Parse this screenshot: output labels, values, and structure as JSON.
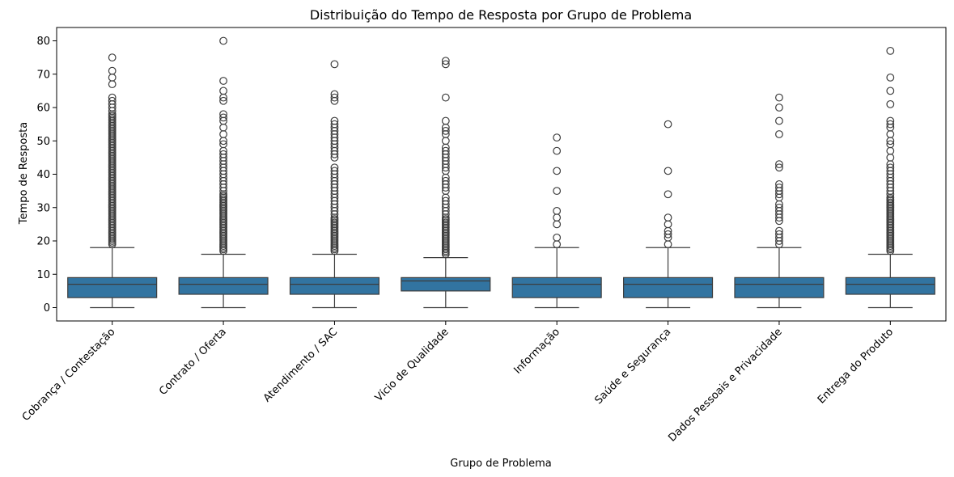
{
  "chart_data": {
    "type": "box",
    "title": "Distribuição do Tempo de Resposta por Grupo de Problema",
    "xlabel": "Grupo de Problema",
    "ylabel": "Tempo de Resposta",
    "ylim": [
      -4,
      84
    ],
    "yticks": [
      0,
      10,
      20,
      30,
      40,
      50,
      60,
      70,
      80
    ],
    "box_color": "#3274a1",
    "line_color": "#3d3d3d",
    "categories": [
      "Cobrança / Contestação",
      "Contrato / Oferta",
      "Atendimento / SAC",
      "Vício de Qualidade",
      "Informação",
      "Saúde e Segurança",
      "Dados Pessoais e Privacidade",
      "Entrega do Produto"
    ],
    "boxes": [
      {
        "min": 0,
        "q1": 3,
        "median": 7,
        "q3": 9,
        "max": 18,
        "outliers": [
          19,
          19.5,
          20,
          20.5,
          21,
          21.5,
          22,
          22.5,
          23,
          23.5,
          24,
          24.5,
          25,
          25.5,
          26,
          26.5,
          27,
          27.5,
          28,
          28.5,
          29,
          29.5,
          30,
          30.5,
          31,
          31.5,
          32,
          32.5,
          33,
          33.5,
          34,
          34.5,
          35,
          35.5,
          36,
          36.5,
          37,
          37.5,
          38,
          38.5,
          39,
          39.5,
          40,
          40.5,
          41,
          41.5,
          42,
          42.5,
          43,
          43.5,
          44,
          44.5,
          45,
          45.5,
          46,
          46.5,
          47,
          47.5,
          48,
          48.5,
          49,
          49.5,
          50,
          50.5,
          51,
          51.5,
          52,
          52.5,
          53,
          53.5,
          54,
          54.5,
          55,
          55.5,
          56,
          56.5,
          57,
          57.5,
          58,
          59,
          60,
          61,
          62,
          63,
          67,
          69,
          71,
          75
        ]
      },
      {
        "min": 0,
        "q1": 4,
        "median": 7,
        "q3": 9,
        "max": 16,
        "outliers": [
          17,
          17.5,
          18,
          18.5,
          19,
          19.5,
          20,
          20.5,
          21,
          21.5,
          22,
          22.5,
          23,
          23.5,
          24,
          24.5,
          25,
          25.5,
          26,
          26.5,
          27,
          27.5,
          28,
          28.5,
          29,
          29.5,
          30,
          30.5,
          31,
          31.5,
          32,
          32.5,
          33,
          33.5,
          34,
          35,
          36,
          37,
          38,
          39,
          40,
          41,
          42,
          43,
          44,
          45,
          46,
          47,
          49,
          50,
          52,
          54,
          56,
          57,
          58,
          62,
          63,
          65,
          68,
          80
        ]
      },
      {
        "min": 0,
        "q1": 4,
        "median": 7,
        "q3": 9,
        "max": 16,
        "outliers": [
          17,
          17.5,
          18,
          18.5,
          19,
          19.5,
          20,
          20.5,
          21,
          21.5,
          22,
          22.5,
          23,
          23.5,
          24,
          24.5,
          25,
          25.5,
          26,
          26.5,
          27,
          28,
          29,
          30,
          31,
          32,
          33,
          34,
          35,
          36,
          37,
          38,
          39,
          40,
          41,
          42,
          45,
          46,
          47,
          48,
          49,
          50,
          51,
          52,
          53,
          54,
          55,
          56,
          62,
          63,
          64,
          73
        ]
      },
      {
        "min": 0,
        "q1": 5,
        "median": 8,
        "q3": 9,
        "max": 15,
        "outliers": [
          16,
          16.5,
          17,
          17.5,
          18,
          18.5,
          19,
          19.5,
          20,
          20.5,
          21,
          21.5,
          22,
          22.5,
          23,
          23.5,
          24,
          24.5,
          25,
          25.5,
          26,
          26.5,
          27,
          28,
          29,
          30,
          31,
          32,
          33,
          35,
          36,
          37,
          38,
          39,
          41,
          42,
          43,
          44,
          45,
          46,
          47,
          48,
          50,
          52,
          53,
          54,
          56,
          63,
          73,
          74
        ]
      },
      {
        "min": 0,
        "q1": 3,
        "median": 7,
        "q3": 9,
        "max": 18,
        "outliers": [
          19,
          21,
          25,
          27,
          29,
          35,
          41,
          47,
          51
        ]
      },
      {
        "min": 0,
        "q1": 3,
        "median": 7,
        "q3": 9,
        "max": 18,
        "outliers": [
          19,
          21,
          22,
          23,
          25,
          27,
          34,
          41,
          55
        ]
      },
      {
        "min": 0,
        "q1": 3,
        "median": 7,
        "q3": 9,
        "max": 18,
        "outliers": [
          19,
          20,
          21,
          22,
          23,
          26,
          27,
          28,
          29,
          30,
          31,
          33,
          34,
          35,
          36,
          37,
          42,
          43,
          52,
          56,
          60,
          63
        ]
      },
      {
        "min": 0,
        "q1": 4,
        "median": 7,
        "q3": 9,
        "max": 16,
        "outliers": [
          17,
          17.5,
          18,
          18.5,
          19,
          19.5,
          20,
          20.5,
          21,
          21.5,
          22,
          22.5,
          23,
          23.5,
          24,
          24.5,
          25,
          25.5,
          26,
          26.5,
          27,
          27.5,
          28,
          28.5,
          29,
          29.5,
          30,
          30.5,
          31,
          31.5,
          32,
          32.5,
          33,
          34,
          35,
          36,
          37,
          38,
          39,
          40,
          41,
          42,
          43,
          45,
          47,
          49,
          50,
          52,
          54,
          55,
          56,
          61,
          65,
          69,
          77
        ]
      }
    ]
  }
}
